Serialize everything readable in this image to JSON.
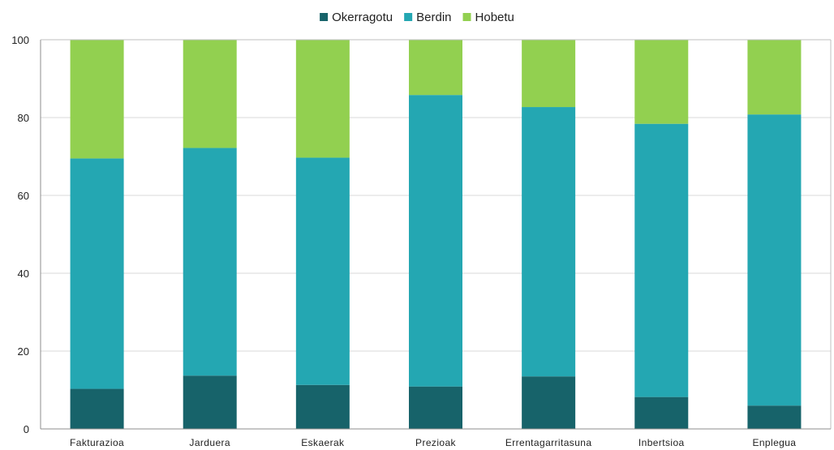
{
  "chart_data": {
    "type": "bar",
    "stacked": true,
    "title": "",
    "xlabel": "",
    "ylabel": "",
    "ylim": [
      0,
      100
    ],
    "yticks": [
      0,
      20,
      40,
      60,
      80,
      100
    ],
    "grid": true,
    "legend_position": "top-center",
    "categories": [
      "Fakturazioa",
      "Jarduera",
      "Eskaerak",
      "Prezioak",
      "Errentagarritasuna",
      "Inbertsioa",
      "Enplegua"
    ],
    "series": [
      {
        "name": "Okerragotu",
        "color": "#17636a",
        "values": [
          10.3,
          13.7,
          11.3,
          10.9,
          13.5,
          8.2,
          6.0
        ]
      },
      {
        "name": "Berdin",
        "color": "#24a7b2",
        "values": [
          59.2,
          58.5,
          58.4,
          74.9,
          69.2,
          70.2,
          74.8
        ]
      },
      {
        "name": "Hobetu",
        "color": "#92d050",
        "values": [
          30.5,
          27.8,
          30.3,
          14.2,
          17.3,
          21.6,
          19.2
        ]
      }
    ]
  }
}
